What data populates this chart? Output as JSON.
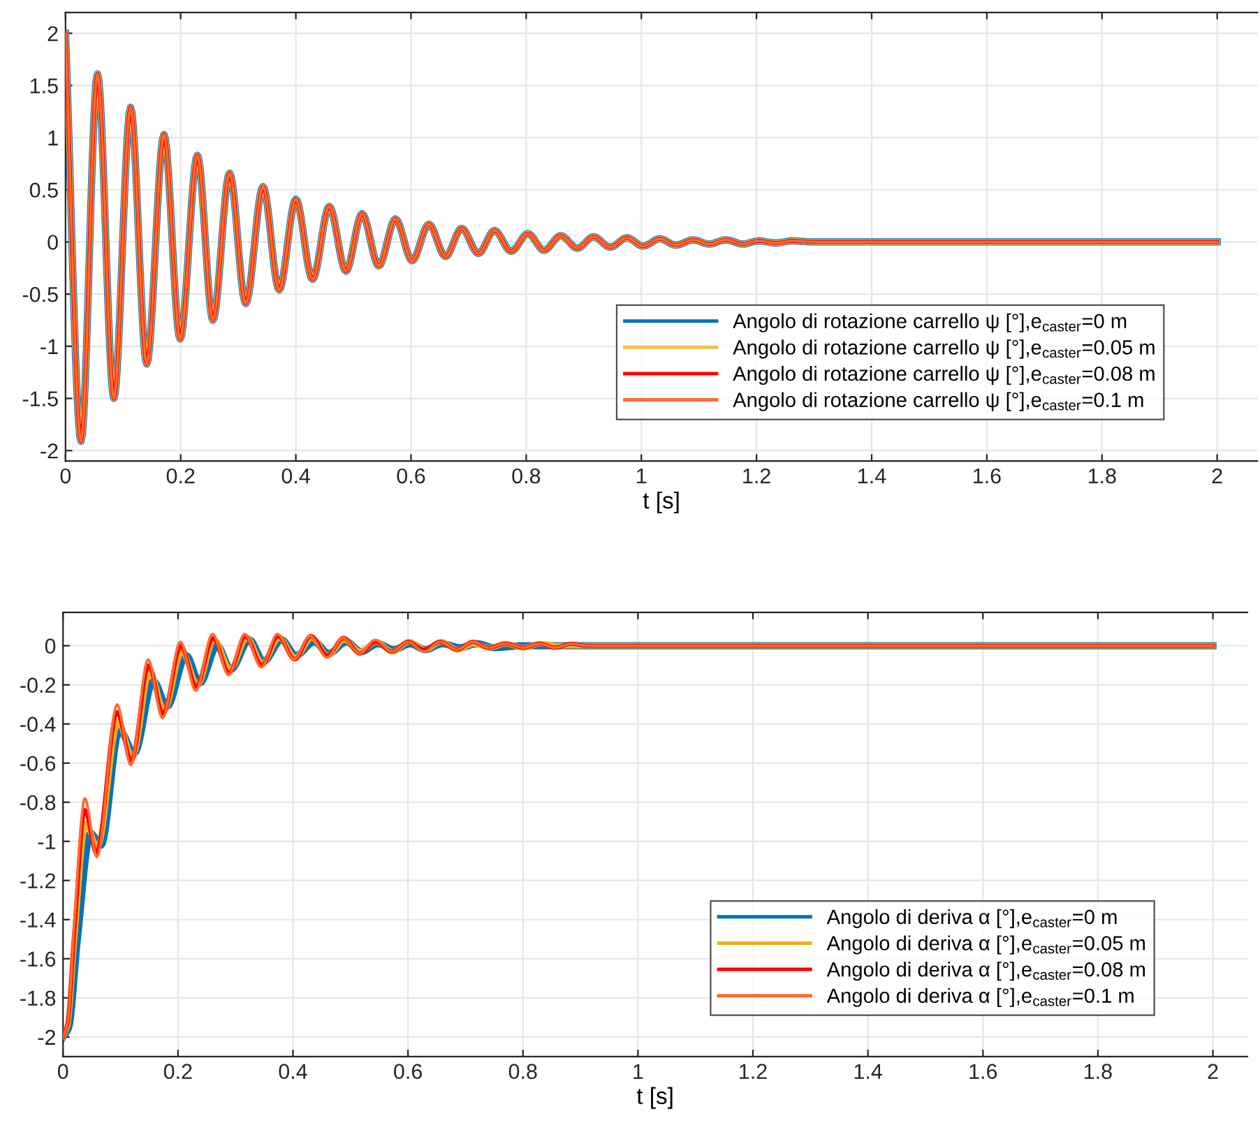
{
  "chart_data": [
    {
      "type": "line",
      "xlabel": "t [s]",
      "xlim": [
        0,
        2.07
      ],
      "ylim": [
        -2.1,
        2.2
      ],
      "xticks": [
        0,
        0.2,
        0.4,
        0.6,
        0.8,
        1,
        1.2,
        1.4,
        1.6,
        1.8,
        2
      ],
      "yticks": [
        -2,
        -1.5,
        -1,
        -0.5,
        0,
        0.5,
        1,
        1.5,
        2
      ],
      "grid": true,
      "legend": "lower right",
      "marker": "none",
      "line_style": "solid",
      "x": [
        0,
        0.027,
        0.0555,
        0.084,
        0.113,
        0.141,
        0.171,
        0.199,
        0.229,
        0.256,
        0.285,
        0.313,
        0.343,
        0.371,
        0.4,
        0.429,
        0.458,
        0.487,
        0.515,
        0.544,
        0.573,
        0.602,
        0.631,
        0.66,
        0.688,
        0.717,
        0.745,
        0.774,
        0.803,
        0.831,
        0.86,
        0.889,
        0.917,
        0.946,
        0.975,
        1.003,
        1.032,
        1.06,
        1.09,
        1.118,
        1.147,
        1.176,
        1.204,
        1.233,
        1.262,
        1.3,
        1.4,
        1.6,
        2
      ],
      "series": [
        {
          "name": "Angolo di rotazione carrello ψ [°],e$_{caster}$=0 m",
          "color": "#0072bd",
          "values": [
            2,
            -1.91,
            1.61,
            -1.5,
            1.29,
            -1.17,
            1.03,
            -0.93,
            0.83,
            -0.75,
            0.66,
            -0.59,
            0.53,
            -0.46,
            0.41,
            -0.36,
            0.34,
            -0.28,
            0.27,
            -0.23,
            0.22,
            -0.18,
            0.17,
            -0.14,
            0.13,
            -0.11,
            0.11,
            -0.09,
            0.08,
            -0.08,
            0.06,
            -0.06,
            0.05,
            -0.05,
            0.04,
            -0.04,
            0.03,
            -0.03,
            0.02,
            -0.02,
            0.02,
            -0.02,
            0.01,
            -0.01,
            0.01,
            0,
            0,
            0,
            0
          ]
        },
        {
          "name": "Angolo di rotazione carrello ψ [°],e$_{caster}$=0.05 m",
          "color": "#f0c050",
          "values": [
            2,
            -1.91,
            1.61,
            -1.5,
            1.29,
            -1.17,
            1.03,
            -0.93,
            0.83,
            -0.75,
            0.66,
            -0.59,
            0.53,
            -0.46,
            0.41,
            -0.36,
            0.34,
            -0.28,
            0.27,
            -0.23,
            0.22,
            -0.18,
            0.17,
            -0.14,
            0.13,
            -0.11,
            0.11,
            -0.09,
            0.08,
            -0.08,
            0.06,
            -0.06,
            0.05,
            -0.05,
            0.04,
            -0.04,
            0.03,
            -0.03,
            0.02,
            -0.02,
            0.02,
            -0.02,
            0.01,
            -0.01,
            0.01,
            0,
            0,
            0,
            0
          ]
        },
        {
          "name": "Angolo di rotazione carrello ψ [°],e$_{caster}$=0.08 m",
          "color": "#ff0000",
          "values": [
            2,
            -1.91,
            1.61,
            -1.5,
            1.29,
            -1.17,
            1.03,
            -0.93,
            0.83,
            -0.75,
            0.66,
            -0.59,
            0.53,
            -0.46,
            0.41,
            -0.36,
            0.34,
            -0.28,
            0.27,
            -0.23,
            0.22,
            -0.18,
            0.17,
            -0.14,
            0.13,
            -0.11,
            0.11,
            -0.09,
            0.08,
            -0.08,
            0.06,
            -0.06,
            0.05,
            -0.05,
            0.04,
            -0.04,
            0.03,
            -0.03,
            0.02,
            -0.02,
            0.02,
            -0.02,
            0.01,
            -0.01,
            0.01,
            0,
            0,
            0,
            0
          ]
        },
        {
          "name": "Angolo di rotazione carrello ψ [°],e$_{caster}$=0.1 m",
          "color": "#ff6a2f",
          "values": [
            2,
            -1.91,
            1.61,
            -1.5,
            1.29,
            -1.17,
            1.03,
            -0.93,
            0.83,
            -0.75,
            0.66,
            -0.59,
            0.53,
            -0.46,
            0.41,
            -0.36,
            0.34,
            -0.28,
            0.27,
            -0.23,
            0.22,
            -0.18,
            0.17,
            -0.14,
            0.13,
            -0.11,
            0.11,
            -0.09,
            0.08,
            -0.08,
            0.06,
            -0.06,
            0.05,
            -0.05,
            0.04,
            -0.04,
            0.03,
            -0.03,
            0.02,
            -0.02,
            0.02,
            -0.02,
            0.01,
            -0.01,
            0.01,
            0,
            0,
            0,
            0
          ]
        }
      ]
    },
    {
      "type": "line",
      "xlabel": "t [s]",
      "xlim": [
        0,
        2.06
      ],
      "ylim": [
        -2.1,
        0.17
      ],
      "xticks": [
        0,
        0.2,
        0.4,
        0.6,
        0.8,
        1,
        1.2,
        1.4,
        1.6,
        1.8,
        2
      ],
      "yticks": [
        -2,
        -1.8,
        -1.6,
        -1.4,
        -1.2,
        -1,
        -0.8,
        -0.6,
        -0.4,
        -0.2,
        0
      ],
      "grid": true,
      "legend": "lower right",
      "marker": "none",
      "line_style": "solid",
      "series": [
        {
          "name": "Angolo di deriva α [°],e$_{caster}$=0 m",
          "color": "#0072bd",
          "x": [
            0,
            0.01,
            0.025,
            0.048,
            0.066,
            0.098,
            0.124,
            0.157,
            0.181,
            0.214,
            0.238,
            0.268,
            0.292,
            0.324,
            0.349,
            0.38,
            0.405,
            0.437,
            0.462,
            0.493,
            0.518,
            0.548,
            0.575,
            0.604,
            0.63,
            0.66,
            0.69,
            0.72,
            0.75,
            0.8,
            0.85,
            0.9,
            1,
            2
          ],
          "values": [
            -2,
            -1.95,
            -1.5,
            -0.96,
            -1.02,
            -0.43,
            -0.55,
            -0.18,
            -0.31,
            -0.05,
            -0.19,
            0,
            -0.12,
            0.03,
            -0.08,
            0.03,
            -0.05,
            0.02,
            -0.04,
            0.02,
            -0.03,
            0.01,
            -0.02,
            0.01,
            -0.02,
            0.01,
            -0.01,
            0.01,
            -0.01,
            0,
            0,
            0,
            0,
            0
          ]
        },
        {
          "name": "Angolo di deriva α [°],e$_{caster}$=0.05 m",
          "color": "#edb120",
          "x": [
            0,
            0.008,
            0.02,
            0.04,
            0.06,
            0.096,
            0.121,
            0.151,
            0.176,
            0.207,
            0.234,
            0.263,
            0.291,
            0.32,
            0.347,
            0.376,
            0.404,
            0.433,
            0.461,
            0.489,
            0.517,
            0.545,
            0.573,
            0.602,
            0.63,
            0.658,
            0.686,
            0.715,
            0.742,
            0.77,
            0.8,
            0.83,
            0.86,
            0.91,
            1,
            1.1,
            2
          ],
          "values": [
            -2,
            -1.94,
            -1.5,
            -0.91,
            -1.03,
            -0.39,
            -0.57,
            -0.13,
            -0.33,
            -0.03,
            -0.2,
            0.03,
            -0.12,
            0.04,
            -0.09,
            0.04,
            -0.06,
            0.04,
            -0.05,
            0.03,
            -0.03,
            0.02,
            -0.03,
            0.02,
            -0.02,
            0.02,
            -0.02,
            0.01,
            -0.01,
            0.01,
            -0.01,
            0.01,
            0,
            0,
            0,
            0,
            0
          ]
        },
        {
          "name": "Angolo di deriva α [°],e$_{caster}$=0.08 m",
          "color": "#ff0000",
          "x": [
            0,
            0.008,
            0.02,
            0.038,
            0.058,
            0.094,
            0.119,
            0.149,
            0.174,
            0.205,
            0.232,
            0.261,
            0.289,
            0.317,
            0.346,
            0.374,
            0.403,
            0.431,
            0.46,
            0.488,
            0.516,
            0.544,
            0.572,
            0.6,
            0.628,
            0.656,
            0.685,
            0.713,
            0.74,
            0.77,
            0.8,
            0.83,
            0.855,
            0.885,
            0.91,
            1,
            1.1,
            2
          ],
          "values": [
            -2,
            -1.93,
            -1.45,
            -0.84,
            -1.06,
            -0.34,
            -0.59,
            -0.1,
            -0.35,
            0,
            -0.21,
            0.04,
            -0.14,
            0.05,
            -0.1,
            0.05,
            -0.07,
            0.05,
            -0.05,
            0.04,
            -0.04,
            0.02,
            -0.03,
            0.02,
            -0.02,
            0.02,
            -0.02,
            0.02,
            -0.01,
            0.01,
            -0.01,
            0.01,
            -0.01,
            0.01,
            0,
            0,
            0,
            0
          ]
        },
        {
          "name": "Angolo di deriva α [°],e$_{caster}$=0.1 m",
          "color": "#ff6a2f",
          "x": [
            0,
            0.008,
            0.02,
            0.038,
            0.059,
            0.094,
            0.118,
            0.148,
            0.173,
            0.204,
            0.231,
            0.26,
            0.288,
            0.316,
            0.345,
            0.373,
            0.402,
            0.43,
            0.459,
            0.487,
            0.516,
            0.543,
            0.572,
            0.6,
            0.628,
            0.656,
            0.685,
            0.713,
            0.74,
            0.77,
            0.8,
            0.83,
            0.855,
            0.885,
            0.91,
            0.94,
            0.97,
            1,
            1.1,
            2
          ],
          "values": [
            -2,
            -1.93,
            -1.4,
            -0.78,
            -1.08,
            -0.3,
            -0.61,
            -0.07,
            -0.37,
            0.02,
            -0.23,
            0.06,
            -0.15,
            0.06,
            -0.11,
            0.06,
            -0.07,
            0.05,
            -0.06,
            0.04,
            -0.04,
            0.03,
            -0.03,
            0.02,
            -0.03,
            0.02,
            -0.02,
            0.02,
            -0.01,
            0.01,
            -0.01,
            0.01,
            -0.01,
            0.01,
            0,
            0,
            0,
            0,
            0,
            0
          ]
        }
      ]
    }
  ]
}
